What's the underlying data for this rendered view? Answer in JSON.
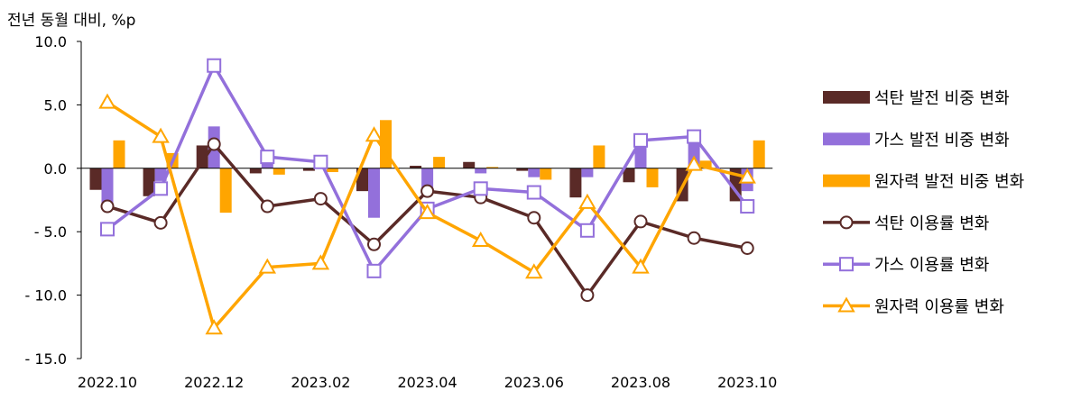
{
  "chart_data": {
    "type": "bar+line",
    "ylabel": "전년 동월 대비, %p",
    "ylim": [
      -15,
      10
    ],
    "yticks": [
      10,
      5,
      0,
      -5,
      -10,
      -15
    ],
    "ytick_labels": [
      "10.0",
      "5.0",
      "0.0",
      "- 5.0",
      "- 10.0",
      "- 15.0"
    ],
    "categories": [
      "2022.10",
      "2022.11",
      "2022.12",
      "2023.01",
      "2023.02",
      "2023.03",
      "2023.04",
      "2023.05",
      "2023.06",
      "2023.07",
      "2023.08",
      "2023.09",
      "2023.10"
    ],
    "xtick_labels": [
      "2022.10",
      "",
      "2022.12",
      "",
      "2023.02",
      "",
      "2023.04",
      "",
      "2023.06",
      "",
      "2023.08",
      "",
      "2023.10"
    ],
    "legend_position": "right",
    "grid": false,
    "bar_series": [
      {
        "name": "석탄 발전 비중 변화",
        "color": "#5a2a27",
        "values": [
          -1.7,
          -2.2,
          1.8,
          -0.4,
          -0.2,
          -1.8,
          0.2,
          0.5,
          -0.2,
          -2.3,
          -1.1,
          -2.6,
          -2.6
        ]
      },
      {
        "name": "가스 발전 비중 변화",
        "color": "#9370db",
        "values": [
          -2.8,
          -1.0,
          3.3,
          0.5,
          0.0,
          -3.9,
          -1.6,
          -0.4,
          -0.7,
          -0.7,
          1.9,
          2.0,
          -1.8
        ]
      },
      {
        "name": "원자력 발전 비중 변화",
        "color": "#ffa500",
        "values": [
          2.2,
          1.2,
          -3.5,
          -0.5,
          -0.3,
          3.8,
          0.9,
          0.1,
          -0.9,
          1.8,
          -1.5,
          0.6,
          2.2
        ]
      }
    ],
    "line_series": [
      {
        "name": "석탄 이용률 변화",
        "color": "#5a2a27",
        "marker": "circle",
        "values": [
          -3.0,
          -4.3,
          1.9,
          -3.0,
          -2.4,
          -6.0,
          -1.8,
          -2.3,
          -3.9,
          -10.0,
          -4.2,
          -5.5,
          -6.3
        ]
      },
      {
        "name": "가스 이용률 변화",
        "color": "#9370db",
        "marker": "square",
        "values": [
          -4.8,
          -1.6,
          8.1,
          0.9,
          0.5,
          -8.1,
          -3.2,
          -1.6,
          -1.9,
          -4.9,
          2.2,
          2.5,
          -3.0
        ]
      },
      {
        "name": "원자력 이용률 변화",
        "color": "#ffa500",
        "marker": "triangle",
        "values": [
          5.2,
          2.5,
          -12.6,
          -7.8,
          -7.5,
          2.6,
          -3.5,
          -5.7,
          -8.2,
          -2.7,
          -7.8,
          0.3,
          -0.7
        ]
      }
    ]
  }
}
